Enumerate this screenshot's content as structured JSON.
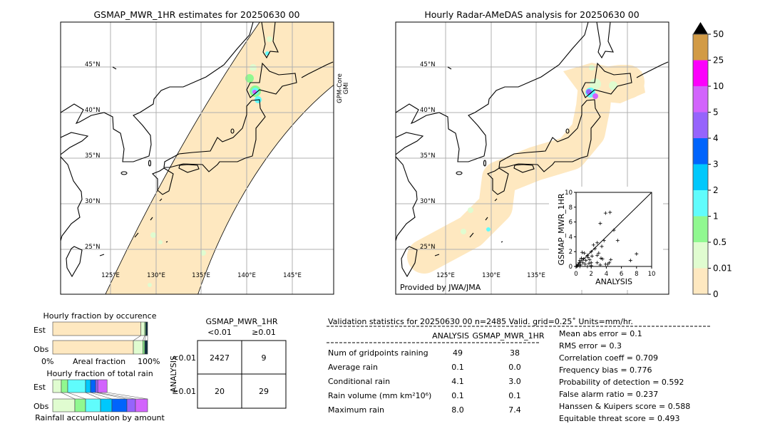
{
  "left_map": {
    "title": "GSMAP_MWR_1HR estimates for 20250630 00",
    "sensor_label": "GPM-Core\nGMI",
    "sensor_line1": "GPM-Core",
    "sensor_line2": "GMI",
    "lat_labels": [
      "45°N",
      "40°N",
      "35°N",
      "30°N",
      "25°N"
    ],
    "lon_labels": [
      "125°E",
      "130°E",
      "135°E",
      "140°E",
      "145°E"
    ]
  },
  "right_map": {
    "title": "Hourly Radar-AMeDAS analysis for 20250630 00",
    "credit": "Provided by JWA/JMA",
    "lat_labels": [
      "45°N",
      "40°N",
      "35°N",
      "30°N",
      "25°N"
    ],
    "lon_labels": [
      "125°E",
      "130°E",
      "135°E"
    ]
  },
  "colorbar": {
    "labels": [
      "0",
      "0.01",
      "0.5",
      "1",
      "2",
      "3",
      "4",
      "5",
      "10",
      "25",
      "50"
    ],
    "colors": [
      "#fee8c0",
      "#e0fcd0",
      "#90f890",
      "#60fcfc",
      "#00c8fc",
      "#0064fc",
      "#9664fc",
      "#d264fc",
      "#fc00fc",
      "#d29b46"
    ],
    "extend_color": "#000000"
  },
  "chart_data": [
    {
      "type": "scatter",
      "xlabel": "ANALYSIS",
      "ylabel": "GSMAP_MWR_1HR",
      "xlim": [
        0,
        10
      ],
      "ylim": [
        0,
        10
      ],
      "xticks": [
        "0",
        "2",
        "4",
        "6",
        "8",
        "10"
      ],
      "yticks": [
        "0",
        "2",
        "4",
        "6",
        "8",
        "10"
      ],
      "points": [
        [
          3.9,
          7.2
        ],
        [
          4.5,
          7.3
        ],
        [
          3.2,
          5.8
        ],
        [
          5,
          4.9
        ],
        [
          5.5,
          3.5
        ],
        [
          3.7,
          3.5
        ],
        [
          2.8,
          3.2
        ],
        [
          3.4,
          2.7
        ],
        [
          8,
          1.7
        ],
        [
          7.2,
          0.8
        ],
        [
          2.3,
          2.9
        ],
        [
          2.5,
          2.4
        ],
        [
          2,
          2
        ],
        [
          1.5,
          1.5
        ],
        [
          0.8,
          1.9
        ],
        [
          1.1,
          1.8
        ],
        [
          3,
          1.8
        ],
        [
          2.8,
          1.5
        ],
        [
          3.5,
          1
        ],
        [
          3.3,
          1.1
        ],
        [
          2.8,
          0.5
        ],
        [
          4.4,
          0.5
        ],
        [
          4.6,
          0.9
        ],
        [
          4.2,
          0.3
        ],
        [
          3.2,
          0.2
        ],
        [
          3.9,
          0.3
        ],
        [
          2,
          0.5
        ],
        [
          1.7,
          0.4
        ],
        [
          1,
          1
        ],
        [
          0.5,
          0.8
        ],
        [
          0.3,
          0.3
        ],
        [
          0.6,
          0.2
        ],
        [
          0.2,
          0.1
        ],
        [
          0.9,
          0.5
        ],
        [
          1.3,
          0.8
        ],
        [
          1.2,
          0.3
        ],
        [
          0.4,
          0.5
        ],
        [
          0.7,
          1.1
        ],
        [
          1.6,
          1.2
        ],
        [
          2.1,
          1.4
        ],
        [
          1.8,
          0.9
        ],
        [
          0.1,
          0.05
        ],
        [
          0.5,
          0
        ],
        [
          1.5,
          0
        ],
        [
          2,
          0.1
        ]
      ]
    },
    {
      "type": "bar",
      "title": "Hourly fraction by occurence",
      "categories": [
        "Est",
        "Obs"
      ],
      "xlabel": "Areal fraction",
      "xmin_label": "0%",
      "xmax_label": "100%",
      "series": [
        {
          "values": [
            0.93,
            0.85
          ],
          "color": "#fee8c0"
        },
        {
          "values": [
            0.04,
            0.1
          ],
          "color": "#e0fcd0"
        },
        {
          "values": [
            0.01,
            0.02
          ],
          "color": "#90f890"
        },
        {
          "values": [
            0.02,
            0.03
          ],
          "color": "#103040"
        }
      ]
    },
    {
      "type": "bar",
      "title": "Hourly fraction of total rain",
      "categories": [
        "Est",
        "Obs"
      ],
      "xlabel": "Rainfall accumulation by amount",
      "series": [
        {
          "values": [
            0.09,
            0.233
          ],
          "color": "#e0fcd0"
        },
        {
          "values": [
            0.068,
            0.113
          ],
          "color": "#90f890"
        },
        {
          "values": [
            0.188,
            0.158
          ],
          "color": "#60fcfc"
        },
        {
          "values": [
            0.053,
            0.12
          ],
          "color": "#00c8fc"
        },
        {
          "values": [
            0.053,
            0.158
          ],
          "color": "#0064fc"
        },
        {
          "values": [
            0.023,
            0.09
          ],
          "color": "#9664fc"
        },
        {
          "values": [
            0.098,
            0.128
          ],
          "color": "#d264fc"
        }
      ]
    }
  ],
  "contingency": {
    "col_title": "GSMAP_MWR_1HR",
    "row_title": "ANALYSIS",
    "col_labels": [
      "<0.01",
      "≥0.01"
    ],
    "row_labels": [
      "<0.01",
      "≥0.01"
    ],
    "cells": [
      [
        "2427",
        "9"
      ],
      [
        "20",
        "29"
      ]
    ]
  },
  "stats": {
    "title": "Validation statistics for 20250630 00  n=2485 Valid. grid=0.25˚ Units=mm/hr.",
    "col_headers": [
      "ANALYSIS",
      "GSMAP_MWR_1HR"
    ],
    "rows": [
      {
        "label": "Num of gridpoints raining",
        "a": "49",
        "b": "38"
      },
      {
        "label": "Average rain",
        "a": "0.1",
        "b": "0.0"
      },
      {
        "label": "Conditional rain",
        "a": "4.1",
        "b": "3.0"
      },
      {
        "label": "Rain volume (mm km²10⁶)",
        "a": "0.1",
        "b": "0.1"
      },
      {
        "label": "Maximum rain",
        "a": "8.0",
        "b": "7.4"
      }
    ],
    "scores": [
      "Mean abs error =    0.1",
      "RMS error =    0.3",
      "Correlation coeff =  0.709",
      "Frequency bias =  0.776",
      "Probability of detection =  0.592",
      "False alarm ratio =  0.237",
      "Hanssen & Kuipers score =  0.588",
      "Equitable threat score =  0.493"
    ]
  }
}
